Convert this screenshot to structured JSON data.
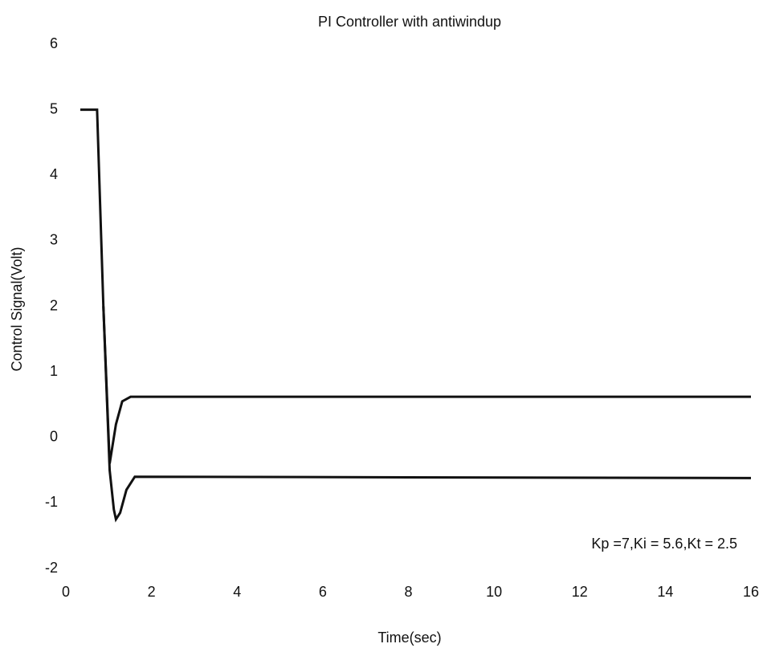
{
  "chart_data": {
    "type": "line",
    "title": "PI Controller with antiwindup",
    "x_label": "Time(sec)",
    "y_label": "Control Signal(Volt)",
    "annotation": "Kp =7,Ki = 5.6,Kt = 2.5",
    "series": [
      {
        "color": "#111111",
        "x": [
          0,
          0.4,
          0.55,
          0.7,
          0.85,
          1.0,
          1.2,
          16
        ],
        "values": [
          5,
          5,
          2,
          -0.4,
          0.2,
          0.55,
          0.62,
          0.62
        ]
      },
      {
        "color": "#111111",
        "x": [
          0.55,
          0.7,
          0.8,
          0.85,
          0.95,
          1.1,
          1.3,
          16
        ],
        "values": [
          2,
          -0.5,
          -1.1,
          -1.25,
          -1.15,
          -0.8,
          -0.6,
          -0.62
        ]
      }
    ],
    "xlim": [
      0,
      16
    ],
    "xticks": [
      0,
      2,
      4,
      6,
      8,
      10,
      12,
      14,
      16
    ],
    "ylim": [
      -2,
      6
    ],
    "yticks": [
      -2,
      -1,
      0,
      1,
      2,
      3,
      4,
      5,
      6
    ]
  }
}
